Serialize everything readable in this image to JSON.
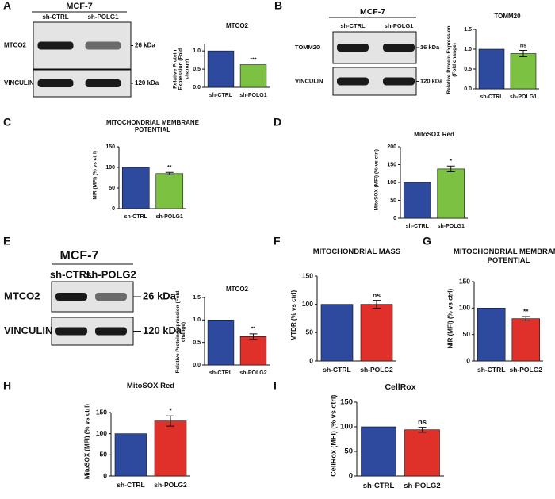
{
  "chart_data": [
    {
      "type": "bar",
      "panel": "A",
      "title": "MTCO2",
      "ylabel": "Relative Protein Expression (Fold change)",
      "categories": [
        "sh-CTRL",
        "sh-POLG1"
      ],
      "values": [
        1.0,
        0.62
      ],
      "colors": [
        "#2e4a9e",
        "#7dc143"
      ],
      "ylim": [
        0,
        1.2
      ],
      "yticks": [
        {
          "value": 0,
          "label": "0.0"
        },
        {
          "value": 0.5,
          "label": "0.5"
        },
        {
          "value": 1,
          "label": "1.0"
        }
      ],
      "annotation": "***"
    },
    {
      "type": "bar",
      "panel": "B",
      "title": "TOMM20",
      "ylabel": "Relative Protein Expression (Fold change)",
      "categories": [
        "sh-CTRL",
        "sh-POLG1"
      ],
      "values": [
        1.0,
        0.89
      ],
      "errors": [
        null,
        0.08
      ],
      "colors": [
        "#2e4a9e",
        "#7dc143"
      ],
      "ylim": [
        0,
        1.5
      ],
      "yticks": [
        {
          "value": 0,
          "label": "0.0"
        },
        {
          "value": 0.5,
          "label": "0.5"
        },
        {
          "value": 1,
          "label": "1.0"
        },
        {
          "value": 1.5,
          "label": "1.5"
        }
      ],
      "annotation": "ns"
    },
    {
      "type": "bar",
      "panel": "C",
      "title": "MITOCHONDRIAL MEMBRANE POTENTIAL",
      "ylabel": "NIR (MFI) (% vs ctrl)",
      "categories": [
        "sh-CTRL",
        "sh-POLG1"
      ],
      "values": [
        100,
        85
      ],
      "errors": [
        null,
        3
      ],
      "colors": [
        "#2e4a9e",
        "#7dc143"
      ],
      "ylim": [
        0,
        150
      ],
      "yticks": [
        0,
        50,
        100,
        150
      ],
      "annotation": "**"
    },
    {
      "type": "bar",
      "panel": "D",
      "title": "MitoSOX Red",
      "ylabel": "MitoSOX (MFI) (% vs ctrl)",
      "categories": [
        "sh-CTRL",
        "sh-POLG1"
      ],
      "values": [
        100,
        138
      ],
      "errors": [
        null,
        8
      ],
      "colors": [
        "#2e4a9e",
        "#7dc143"
      ],
      "ylim": [
        0,
        200
      ],
      "yticks": [
        0,
        50,
        100,
        150,
        200
      ],
      "annotation": "*"
    },
    {
      "type": "bar",
      "panel": "E",
      "title": "MTCO2",
      "ylabel": "Relative Protein Expression (Fold change)",
      "categories": [
        "sh-CTRL",
        "sh-POLG2"
      ],
      "values": [
        1.0,
        0.63
      ],
      "errors": [
        null,
        0.06
      ],
      "colors": [
        "#2e4a9e",
        "#e0302a"
      ],
      "ylim": [
        0,
        1.5
      ],
      "yticks": [
        {
          "value": 0,
          "label": "0.0"
        },
        {
          "value": 0.5,
          "label": "0.5"
        },
        {
          "value": 1,
          "label": "1.0"
        },
        {
          "value": 1.5,
          "label": "1.5"
        }
      ],
      "annotation": "**"
    },
    {
      "type": "bar",
      "panel": "F",
      "title": "MITOCHONDRIAL MASS",
      "ylabel": "MTDR (% vs ctrl)",
      "categories": [
        "sh-CTRL",
        "sh-POLG2"
      ],
      "values": [
        100,
        100
      ],
      "errors": [
        null,
        7
      ],
      "colors": [
        "#2e4a9e",
        "#e0302a"
      ],
      "ylim": [
        0,
        150
      ],
      "yticks": [
        0,
        50,
        100,
        150
      ],
      "annotation": "ns"
    },
    {
      "type": "bar",
      "panel": "G",
      "title": "MITOCHONDRIAL MEMBRANE POTENTIAL",
      "ylabel": "NIR (MFI) (% vs ctrl)",
      "categories": [
        "sh-CTRL",
        "sh-POLG2"
      ],
      "values": [
        100,
        80
      ],
      "errors": [
        null,
        4
      ],
      "colors": [
        "#2e4a9e",
        "#e0302a"
      ],
      "ylim": [
        0,
        150
      ],
      "yticks": [
        0,
        50,
        100,
        150
      ],
      "annotation": "**"
    },
    {
      "type": "bar",
      "panel": "H",
      "title": "MitoSOX Red",
      "ylabel": "MitoSOX (MFI) (% vs ctrl)",
      "categories": [
        "sh-CTRL",
        "sh-POLG2"
      ],
      "values": [
        100,
        130
      ],
      "errors": [
        null,
        12
      ],
      "colors": [
        "#2e4a9e",
        "#e0302a"
      ],
      "ylim": [
        0,
        150
      ],
      "yticks": [
        0,
        50,
        100,
        150
      ],
      "annotation": "*"
    },
    {
      "type": "bar",
      "panel": "I",
      "title": "CellRox",
      "ylabel": "CellRox (MFI) (% vs ctrl)",
      "categories": [
        "sh-CTRL",
        "sh-POLG2"
      ],
      "values": [
        100,
        94
      ],
      "errors": [
        null,
        5
      ],
      "colors": [
        "#2e4a9e",
        "#e0302a"
      ],
      "ylim": [
        0,
        150
      ],
      "yticks": [
        0,
        50,
        100,
        150
      ],
      "annotation": "ns"
    }
  ],
  "blots": [
    {
      "header": "MCF-7",
      "lanes": [
        "sh-CTRL",
        "sh-POLG1"
      ],
      "rows": [
        {
          "label": "MTCO2",
          "size": "26 kDa"
        },
        {
          "label": "VINCULIN",
          "size": "120 kDa"
        }
      ]
    },
    {
      "header": "MCF-7",
      "lanes": [
        "sh-CTRL",
        "sh-POLG1"
      ],
      "rows": [
        {
          "label": "TOMM20",
          "size": "16 kDa"
        },
        {
          "label": "VINCULIN",
          "size": "120 kDa"
        }
      ]
    },
    {
      "header": "MCF-7",
      "lanes": [
        "sh-CTRL",
        "sh-POLG2"
      ],
      "rows": [
        {
          "label": "MTCO2",
          "size": "26 kDa"
        },
        {
          "label": "VINCULIN",
          "size": "120 kDa"
        }
      ]
    }
  ]
}
